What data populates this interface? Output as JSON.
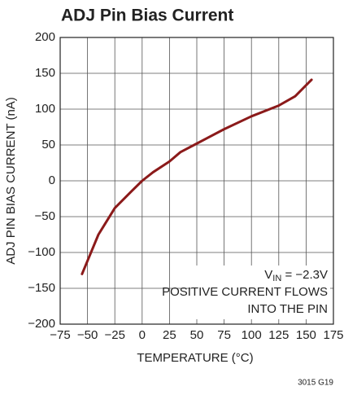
{
  "chart_data": {
    "type": "line",
    "title": "ADJ Pin Bias Current",
    "xlabel": "TEMPERATURE (°C)",
    "ylabel": "ADJ PIN BIAS CURRENT (nA)",
    "x": [
      -55,
      -40,
      -25,
      -10,
      0,
      10,
      25,
      35,
      50,
      75,
      100,
      125,
      140,
      155
    ],
    "values": [
      -130,
      -75,
      -38,
      -15,
      0,
      12,
      27,
      40,
      52,
      72,
      90,
      105,
      118,
      141
    ],
    "color": "#8b1a1a",
    "xlim": [
      -75,
      175
    ],
    "xticks": [
      {
        "value": -75,
        "label": "−75"
      },
      {
        "value": -50,
        "label": "−50"
      },
      {
        "value": -25,
        "label": "−25"
      },
      0,
      25,
      50,
      75,
      100,
      125,
      150,
      175
    ],
    "ylim": [
      -200,
      200
    ],
    "yticks": [
      {
        "value": -200,
        "label": "−200"
      },
      {
        "value": -150,
        "label": "−150"
      },
      {
        "value": -100,
        "label": "−100"
      },
      {
        "value": -50,
        "label": "−50"
      },
      0,
      50,
      100,
      150,
      200
    ],
    "grid": true,
    "annotations": {
      "vin": {
        "main": "V",
        "sub": "IN",
        "rest": " = −2.3V"
      },
      "line2": "POSITIVE CURRENT FLOWS",
      "line3": "INTO THE PIN"
    },
    "footer": "3015 G19"
  }
}
